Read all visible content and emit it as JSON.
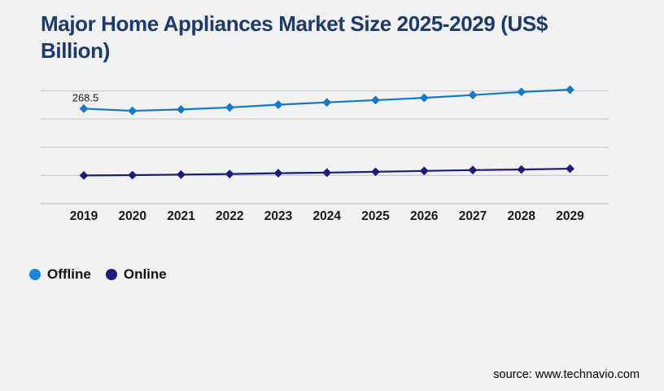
{
  "page": {
    "background_color": "#f2f2f4"
  },
  "header": {
    "title": "Major Home Appliances Market Size 2025-2029 (US$ Billion)",
    "title_lines": [
      "Major Home Appliances Market Size 2025-2029 (US$",
      "Billion)"
    ],
    "title_color": "#1e3a68"
  },
  "chart_data": {
    "type": "line",
    "title": "Major Home Appliances Market Size 2025-2029 (US$ Billion)",
    "categories": [
      "2019",
      "2020",
      "2021",
      "2022",
      "2023",
      "2024",
      "2025",
      "2026",
      "2027",
      "2028",
      "2029"
    ],
    "series": [
      {
        "name": "Offline",
        "color": "#1478c8",
        "marker": "diamond",
        "values": [
          268.5,
          264.5,
          267.0,
          270.5,
          275.5,
          279.5,
          283.5,
          287.5,
          292.5,
          298.0,
          302.0
        ]
      },
      {
        "name": "Online",
        "color": "#1f1b76",
        "marker": "diamond",
        "values": [
          150.0,
          150.5,
          151.5,
          152.5,
          154.0,
          155.0,
          156.5,
          158.0,
          159.5,
          160.5,
          162.0
        ]
      }
    ],
    "data_labels": [
      {
        "series": "Offline",
        "category": "2019",
        "text": "268.5"
      }
    ],
    "xlabel": "",
    "ylabel": "",
    "ylim": [
      100,
      300
    ],
    "gridlines": {
      "orientation": "horizontal",
      "values": [
        100,
        150,
        200,
        250,
        300
      ],
      "color": "#cbcbcf"
    },
    "y_axis_labels_visible": false,
    "legend_position": "bottom-left"
  },
  "legend": {
    "items": [
      {
        "label": "Offline",
        "color": "#1a86d8"
      },
      {
        "label": "Online",
        "color": "#1f1b76"
      }
    ]
  },
  "footer": {
    "source_text": "source: www.technavio.com"
  }
}
